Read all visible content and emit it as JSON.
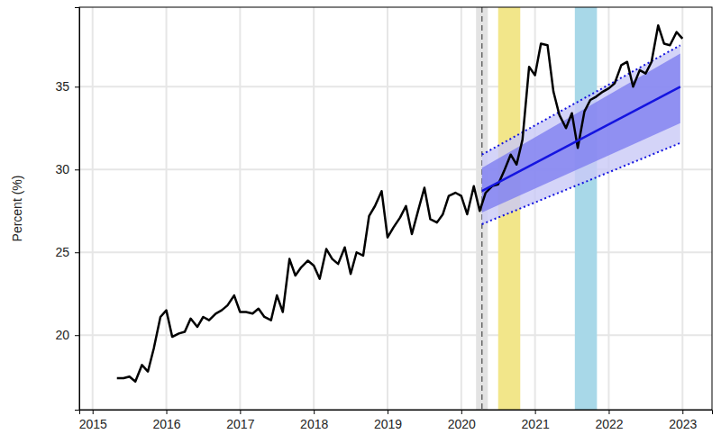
{
  "chart_data": {
    "type": "line",
    "y_label": "Percent (%)",
    "xlim": [
      2014.82,
      2023.4
    ],
    "ylim": [
      15.5,
      39.8
    ],
    "xticks": [
      2015,
      2016,
      2017,
      2018,
      2019,
      2020,
      2021,
      2022,
      2023
    ],
    "yticks": [
      20,
      25,
      30,
      35
    ],
    "grid": true,
    "vertical_lines": [
      {
        "x": 2020.28,
        "color": "#666666",
        "line_style": "dashed"
      }
    ],
    "shaded_regions": [
      {
        "x0": 2020.2,
        "x1": 2020.36,
        "color": "#e3e3e3"
      },
      {
        "x0": 2020.5,
        "x1": 2020.8,
        "color": "#f2e68a"
      },
      {
        "x0": 2021.54,
        "x1": 2021.84,
        "color": "#a8d8e8"
      }
    ],
    "series": [
      {
        "type": "line",
        "color": "#000000",
        "line_style": "solid",
        "x": [
          2015.33,
          2015.42,
          2015.5,
          2015.58,
          2015.67,
          2015.75,
          2015.83,
          2015.92,
          2016.0,
          2016.08,
          2016.17,
          2016.25,
          2016.33,
          2016.42,
          2016.5,
          2016.58,
          2016.67,
          2016.75,
          2016.83,
          2016.92,
          2017.0,
          2017.08,
          2017.17,
          2017.25,
          2017.33,
          2017.42,
          2017.5,
          2017.58,
          2017.67,
          2017.75,
          2017.83,
          2017.92,
          2018.0,
          2018.08,
          2018.17,
          2018.25,
          2018.33,
          2018.42,
          2018.5,
          2018.58,
          2018.67,
          2018.75,
          2018.83,
          2018.92,
          2019.0,
          2019.08,
          2019.17,
          2019.25,
          2019.33,
          2019.42,
          2019.5,
          2019.58,
          2019.67,
          2019.75,
          2019.83,
          2019.92,
          2020.0,
          2020.08,
          2020.17,
          2020.25,
          2020.33,
          2020.42,
          2020.5,
          2020.58,
          2020.67,
          2020.75,
          2020.83,
          2020.92,
          2021.0,
          2021.08,
          2021.17,
          2021.25,
          2021.33,
          2021.42,
          2021.5,
          2021.58,
          2021.67,
          2021.75,
          2021.83,
          2021.92,
          2022.0,
          2022.08,
          2022.17,
          2022.25,
          2022.33,
          2022.42,
          2022.5,
          2022.58,
          2022.67,
          2022.75,
          2022.83,
          2022.92,
          2023.0
        ],
        "values": [
          17.4,
          17.4,
          17.5,
          17.2,
          18.2,
          17.8,
          19.2,
          21.1,
          21.5,
          19.9,
          20.1,
          20.2,
          21.0,
          20.5,
          21.1,
          20.9,
          21.3,
          21.5,
          21.8,
          22.4,
          21.4,
          21.4,
          21.3,
          21.6,
          21.1,
          20.9,
          22.4,
          21.4,
          24.6,
          23.6,
          24.1,
          24.5,
          24.2,
          23.4,
          25.2,
          24.6,
          24.3,
          25.3,
          23.7,
          25.0,
          24.8,
          27.2,
          27.8,
          28.7,
          25.9,
          26.5,
          27.1,
          27.8,
          26.1,
          27.6,
          28.9,
          27.0,
          26.8,
          27.3,
          28.4,
          28.6,
          28.4,
          27.3,
          29.0,
          27.5,
          28.6,
          29.0,
          29.1,
          29.9,
          30.9,
          30.3,
          31.8,
          36.2,
          35.7,
          37.6,
          37.5,
          34.7,
          33.3,
          32.5,
          33.4,
          31.3,
          33.5,
          34.2,
          34.4,
          34.7,
          34.9,
          35.2,
          36.3,
          36.5,
          35.0,
          36.0,
          35.8,
          36.5,
          38.7,
          37.6,
          37.5,
          38.3,
          37.9
        ]
      },
      {
        "type": "line",
        "color": "#1414e0",
        "line_style": "solid",
        "x": [
          2020.28,
          2022.97
        ],
        "values": [
          28.7,
          35.0
        ],
        "intervals": [
          {
            "lower": [
              26.7,
              31.6
            ],
            "upper": [
              30.9,
              37.5
            ],
            "color": "#c9c9f6",
            "line_style": "dotted"
          },
          {
            "lower": [
              27.4,
              32.8
            ],
            "upper": [
              30.1,
              37.0
            ],
            "color": "#7e7ef0"
          }
        ]
      }
    ]
  }
}
